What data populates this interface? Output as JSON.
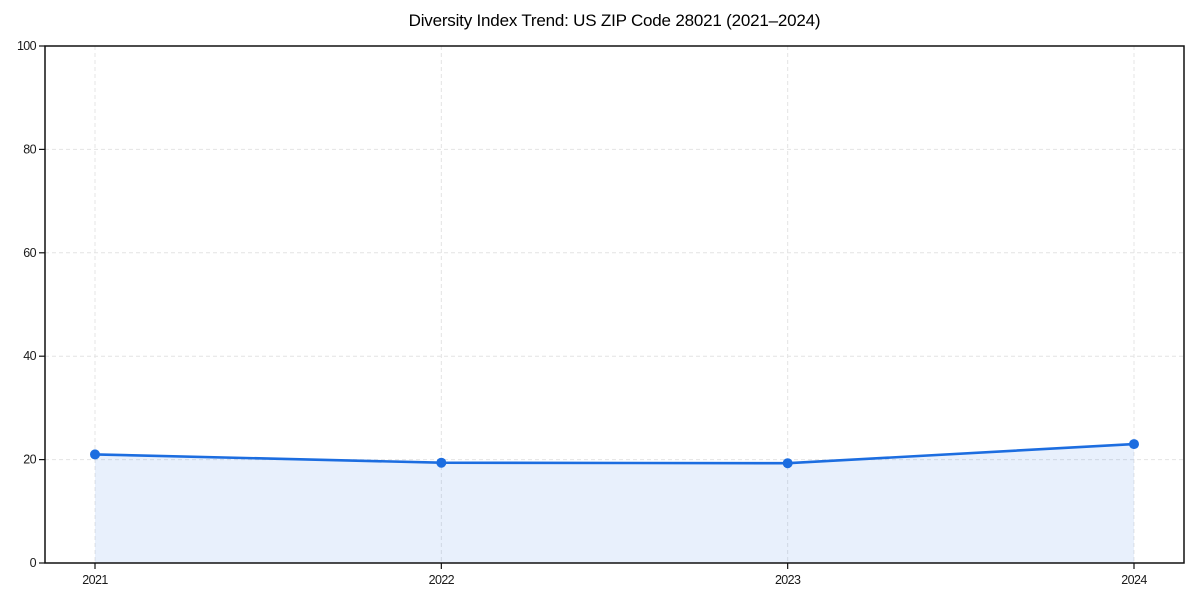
{
  "title": "Diversity Index Trend: US ZIP Code 28021 (2021–2024)",
  "colors": {
    "line": "#1c6de0",
    "marker": "#1c6de0",
    "grid": "#e4e4e4",
    "spine": "#111111",
    "background": "#ffffff",
    "tick_text": "#1a1a1a"
  },
  "chart_data": {
    "type": "area",
    "title": "Diversity Index Trend: US ZIP Code 28021 (2021–2024)",
    "categories": [
      "2021",
      "2022",
      "2023",
      "2024"
    ],
    "series": [
      {
        "name": "Diversity Index",
        "values": [
          21,
          19.4,
          19.3,
          23
        ]
      }
    ],
    "xlabel": "",
    "ylabel": "",
    "ylim": [
      0,
      100
    ],
    "yticks": [
      0,
      20,
      40,
      60,
      80,
      100
    ],
    "grid": true,
    "grid_style": "dashed",
    "legend": "none",
    "line_width": 2.6,
    "marker_radius": 5,
    "fill_opacity": 0.1
  }
}
